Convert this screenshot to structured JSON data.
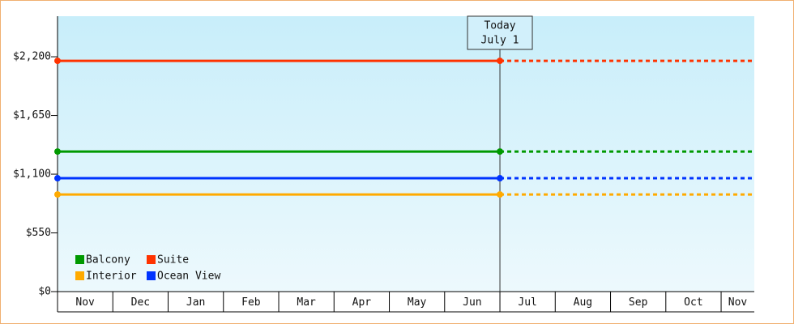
{
  "chart_data": {
    "type": "line",
    "x": [
      0,
      8
    ],
    "xlim": [
      0,
      12.6
    ],
    "xticks": [
      0,
      1,
      2,
      3,
      4,
      5,
      6,
      7,
      8,
      9,
      10,
      11,
      12
    ],
    "categories": [
      "Nov",
      "Dec",
      "Jan",
      "Feb",
      "Mar",
      "Apr",
      "May",
      "Jun",
      "Jul",
      "Aug",
      "Sep",
      "Oct",
      "Nov"
    ],
    "series": [
      {
        "name": "Balcony",
        "color": "#009900",
        "values": [
          1312,
          1312
        ]
      },
      {
        "name": "Suite",
        "color": "#ff3300",
        "values": [
          2162,
          2162
        ]
      },
      {
        "name": "Interior",
        "color": "#ffaa00",
        "values": [
          910,
          910
        ]
      },
      {
        "name": "Ocean View",
        "color": "#0033ff",
        "values": [
          1062,
          1062
        ]
      }
    ],
    "ylim": [
      0,
      2580
    ],
    "yticks": [
      {
        "value": 0,
        "label": "$0"
      },
      {
        "value": 550,
        "label": "$550"
      },
      {
        "value": 1100,
        "label": "$1,100"
      },
      {
        "value": 1650,
        "label": "$1,650"
      },
      {
        "value": 2200,
        "label": "$2,200"
      }
    ],
    "annotation": {
      "lines": [
        "Today",
        "July 1"
      ],
      "x": 8
    },
    "legend": "bottom-left"
  }
}
